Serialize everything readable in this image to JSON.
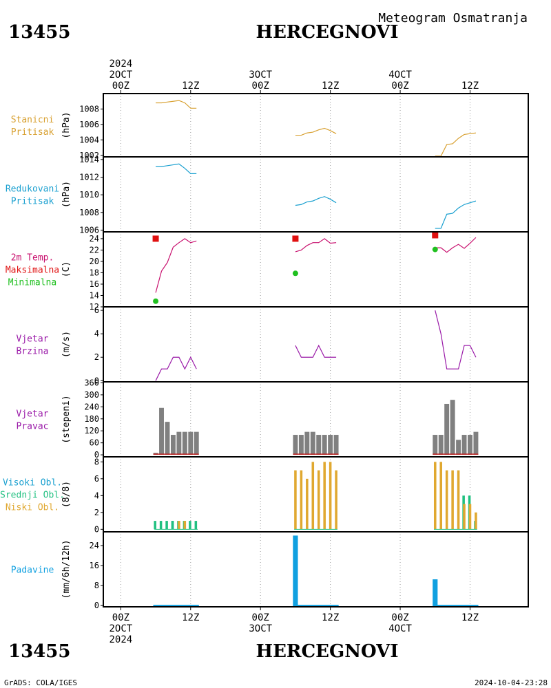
{
  "header": {
    "station_id": "13455",
    "station_name": "HERCEGNOVI",
    "product_title": "Meteogram Osmatranja"
  },
  "footer": {
    "station_id": "13455",
    "station_name": "HERCEGNOVI",
    "credit": "GrADS: COLA/IGES",
    "timestamp": "2024-10-04-23:28"
  },
  "time_axis": {
    "top_lines": [
      {
        "x": 0,
        "lines": [
          "2024",
          "2OCT",
          "00Z"
        ]
      },
      {
        "x": 12,
        "lines": [
          "12Z"
        ]
      },
      {
        "x": 24,
        "lines": [
          "3OCT",
          "00Z"
        ]
      },
      {
        "x": 36,
        "lines": [
          "12Z"
        ]
      },
      {
        "x": 48,
        "lines": [
          "4OCT",
          "00Z"
        ]
      },
      {
        "x": 60,
        "lines": [
          "12Z"
        ]
      }
    ],
    "bottom_lines": [
      {
        "x": 0,
        "lines": [
          "00Z",
          "2OCT",
          "2024"
        ]
      },
      {
        "x": 12,
        "lines": [
          "12Z"
        ]
      },
      {
        "x": 24,
        "lines": [
          "00Z",
          "3OCT"
        ]
      },
      {
        "x": 36,
        "lines": [
          "12Z"
        ]
      },
      {
        "x": 48,
        "lines": [
          "00Z",
          "4OCT"
        ]
      },
      {
        "x": 60,
        "lines": [
          "12Z"
        ]
      }
    ],
    "x_range_hours": [
      -3,
      70
    ],
    "gridlines_hours": [
      0,
      12,
      24,
      36,
      48,
      60
    ]
  },
  "colors": {
    "station_pressure": "#d8a030",
    "reduced_pressure": "#1aa0d0",
    "temp_label": "#c8106e",
    "max_label": "#e01010",
    "min_label": "#20c020",
    "wind": "#9a1aa8",
    "wind_dir_bar": "#808080",
    "wind_dir_base": "#c02020",
    "cloud_high": "#1aa0d0",
    "cloud_mid": "#20c080",
    "cloud_low": "#e0a830",
    "precip": "#10a0e0",
    "grid": "#999999"
  },
  "chart_data": [
    {
      "type": "line",
      "id": "station_pressure",
      "labels": [
        "Stanicni",
        "Pritisak"
      ],
      "ylabel": "(hPa)",
      "ylim": [
        1001.8,
        1010
      ],
      "yticks": [
        1002,
        1004,
        1006,
        1008
      ],
      "series": [
        {
          "values": [
            [
              6,
              1008.8
            ],
            [
              7,
              1008.8
            ],
            [
              8,
              1008.9
            ],
            [
              9,
              1009.0
            ],
            [
              10,
              1009.1
            ],
            [
              11,
              1008.8
            ],
            [
              12,
              1008.1
            ],
            [
              13,
              1008.1
            ]
          ]
        },
        {
          "values": [
            [
              30,
              1004.6
            ],
            [
              31,
              1004.6
            ],
            [
              32,
              1004.9
            ],
            [
              33,
              1005.0
            ],
            [
              34,
              1005.3
            ],
            [
              35,
              1005.5
            ],
            [
              36,
              1005.2
            ],
            [
              37,
              1004.8
            ]
          ]
        },
        {
          "values": [
            [
              54,
              1001.9
            ],
            [
              55,
              1001.9
            ],
            [
              56,
              1003.4
            ],
            [
              57,
              1003.5
            ],
            [
              58,
              1004.2
            ],
            [
              59,
              1004.7
            ],
            [
              60,
              1004.8
            ],
            [
              61,
              1004.9
            ]
          ]
        }
      ]
    },
    {
      "type": "line",
      "id": "reduced_pressure",
      "labels": [
        "Redukovani",
        "Pritisak"
      ],
      "ylabel": "(hPa)",
      "ylim": [
        1005.8,
        1014.3
      ],
      "yticks": [
        1006,
        1008,
        1010,
        1012,
        1014
      ],
      "series": [
        {
          "values": [
            [
              6,
              1013.2
            ],
            [
              7,
              1013.2
            ],
            [
              8,
              1013.3
            ],
            [
              9,
              1013.4
            ],
            [
              10,
              1013.5
            ],
            [
              11,
              1013.0
            ],
            [
              12,
              1012.4
            ],
            [
              13,
              1012.4
            ]
          ]
        },
        {
          "values": [
            [
              30,
              1008.8
            ],
            [
              31,
              1008.9
            ],
            [
              32,
              1009.2
            ],
            [
              33,
              1009.3
            ],
            [
              34,
              1009.6
            ],
            [
              35,
              1009.8
            ],
            [
              36,
              1009.5
            ],
            [
              37,
              1009.1
            ]
          ]
        },
        {
          "values": [
            [
              54,
              1006.2
            ],
            [
              55,
              1006.2
            ],
            [
              56,
              1007.8
            ],
            [
              57,
              1007.9
            ],
            [
              58,
              1008.5
            ],
            [
              59,
              1008.9
            ],
            [
              60,
              1009.1
            ],
            [
              61,
              1009.3
            ]
          ]
        }
      ]
    },
    {
      "type": "line",
      "id": "temperature",
      "labels": [
        "2m Temp.",
        "Maksimalna",
        "Minimalna"
      ],
      "ylabel": "(C)",
      "ylim": [
        12,
        25.2
      ],
      "yticks": [
        12,
        14,
        16,
        18,
        20,
        22,
        24
      ],
      "series": [
        {
          "name": "2m Temp.",
          "values": [
            [
              6,
              14.5
            ],
            [
              7,
              18.3
            ],
            [
              8,
              19.8
            ],
            [
              9,
              22.5
            ],
            [
              10,
              23.3
            ],
            [
              11,
              24.0
            ],
            [
              12,
              23.3
            ],
            [
              13,
              23.6
            ]
          ]
        },
        {
          "name": "2m Temp.",
          "values": [
            [
              30,
              21.7
            ],
            [
              31,
              22.0
            ],
            [
              32,
              22.8
            ],
            [
              33,
              23.3
            ],
            [
              34,
              23.3
            ],
            [
              35,
              24.0
            ],
            [
              36,
              23.2
            ],
            [
              37,
              23.3
            ]
          ]
        },
        {
          "name": "2m Temp.",
          "values": [
            [
              54,
              22.4
            ],
            [
              55,
              22.4
            ],
            [
              56,
              21.6
            ],
            [
              57,
              22.4
            ],
            [
              58,
              23.0
            ],
            [
              59,
              22.3
            ],
            [
              60,
              23.2
            ],
            [
              61,
              24.2
            ]
          ]
        }
      ],
      "max_points": [
        [
          6,
          24.0
        ],
        [
          30,
          24.0
        ],
        [
          54,
          24.6
        ]
      ],
      "min_points": [
        [
          6,
          13.0
        ],
        [
          30,
          17.9
        ],
        [
          54,
          22.1
        ]
      ]
    },
    {
      "type": "line",
      "id": "wind_speed",
      "labels": [
        "Vjetar",
        "Brzina"
      ],
      "ylabel": "(m/s)",
      "ylim": [
        -0.1,
        6.3
      ],
      "yticks": [
        0,
        2,
        4,
        6
      ],
      "series": [
        {
          "values": [
            [
              6,
              0
            ],
            [
              7,
              1
            ],
            [
              8,
              1
            ],
            [
              9,
              2
            ],
            [
              10,
              2
            ],
            [
              11,
              1
            ],
            [
              12,
              2
            ],
            [
              13,
              1
            ]
          ]
        },
        {
          "values": [
            [
              30,
              3
            ],
            [
              31,
              2
            ],
            [
              32,
              2
            ],
            [
              33,
              2
            ],
            [
              34,
              3
            ],
            [
              35,
              2
            ],
            [
              36,
              2
            ],
            [
              37,
              2
            ]
          ]
        },
        {
          "values": [
            [
              54,
              6
            ],
            [
              55,
              4
            ],
            [
              56,
              1
            ],
            [
              57,
              1
            ],
            [
              58,
              1
            ],
            [
              59,
              3
            ],
            [
              60,
              3
            ],
            [
              61,
              2
            ]
          ]
        }
      ]
    },
    {
      "type": "bar",
      "id": "wind_direction",
      "labels": [
        "Vjetar",
        "Pravac"
      ],
      "ylabel": "(stepeni)",
      "ylim": [
        -10,
        365
      ],
      "yticks": [
        0,
        60,
        120,
        180,
        240,
        300,
        360
      ],
      "bars": [
        [
          6,
          10
        ],
        [
          7,
          235
        ],
        [
          8,
          165
        ],
        [
          9,
          100
        ],
        [
          10,
          115
        ],
        [
          11,
          115
        ],
        [
          12,
          115
        ],
        [
          13,
          115
        ],
        [
          30,
          100
        ],
        [
          31,
          100
        ],
        [
          32,
          115
        ],
        [
          33,
          115
        ],
        [
          34,
          100
        ],
        [
          35,
          100
        ],
        [
          36,
          100
        ],
        [
          37,
          100
        ],
        [
          54,
          100
        ],
        [
          55,
          100
        ],
        [
          56,
          255
        ],
        [
          57,
          275
        ],
        [
          58,
          75
        ],
        [
          59,
          100
        ],
        [
          60,
          100
        ],
        [
          61,
          115
        ]
      ]
    },
    {
      "type": "bar",
      "id": "clouds",
      "labels": [
        "Visoki Obl.",
        "Srednji Obl.",
        "Niski Obl."
      ],
      "ylabel": "(8/8)",
      "ylim": [
        -0.3,
        8.6
      ],
      "yticks": [
        0,
        2,
        4,
        6,
        8
      ],
      "series": [
        {
          "name": "Visoki Obl.",
          "values": [
            [
              6,
              0
            ],
            [
              7,
              0
            ],
            [
              8,
              0
            ],
            [
              9,
              1
            ],
            [
              10,
              0
            ],
            [
              11,
              0
            ],
            [
              12,
              0
            ],
            [
              13,
              0
            ],
            [
              30,
              0
            ],
            [
              31,
              0
            ],
            [
              32,
              0
            ],
            [
              33,
              0
            ],
            [
              34,
              0
            ],
            [
              35,
              0
            ],
            [
              36,
              0
            ],
            [
              37,
              0
            ],
            [
              54,
              0
            ],
            [
              55,
              0
            ],
            [
              56,
              0
            ],
            [
              57,
              0
            ],
            [
              58,
              0
            ],
            [
              59,
              0
            ],
            [
              60,
              0
            ],
            [
              61,
              0
            ]
          ]
        },
        {
          "name": "Srednji Obl.",
          "values": [
            [
              6,
              1
            ],
            [
              7,
              1
            ],
            [
              8,
              1
            ],
            [
              9,
              1
            ],
            [
              10,
              1
            ],
            [
              11,
              1
            ],
            [
              12,
              1
            ],
            [
              13,
              1
            ],
            [
              30,
              0
            ],
            [
              31,
              0
            ],
            [
              32,
              0
            ],
            [
              33,
              0
            ],
            [
              34,
              0
            ],
            [
              35,
              0
            ],
            [
              36,
              0
            ],
            [
              37,
              0
            ],
            [
              54,
              0
            ],
            [
              55,
              0
            ],
            [
              56,
              0
            ],
            [
              57,
              0
            ],
            [
              58,
              0
            ],
            [
              59,
              4
            ],
            [
              60,
              4
            ],
            [
              61,
              1
            ]
          ]
        },
        {
          "name": "Niski Obl.",
          "values": [
            [
              6,
              0
            ],
            [
              7,
              0
            ],
            [
              8,
              0
            ],
            [
              9,
              0
            ],
            [
              10,
              1
            ],
            [
              11,
              1
            ],
            [
              12,
              0
            ],
            [
              13,
              0
            ],
            [
              30,
              7
            ],
            [
              31,
              7
            ],
            [
              32,
              6
            ],
            [
              33,
              8
            ],
            [
              34,
              7
            ],
            [
              35,
              8
            ],
            [
              36,
              8
            ],
            [
              37,
              7
            ],
            [
              54,
              8
            ],
            [
              55,
              8
            ],
            [
              56,
              7
            ],
            [
              57,
              7
            ],
            [
              58,
              7
            ],
            [
              59,
              3
            ],
            [
              60,
              3
            ],
            [
              61,
              2
            ]
          ]
        }
      ]
    },
    {
      "type": "bar",
      "id": "precipitation",
      "labels": [
        "Padavine"
      ],
      "ylabel": "(mm/6h/12h)",
      "ylim": [
        -0.5,
        29.5
      ],
      "yticks": [
        0,
        8,
        16,
        24
      ],
      "bars": [
        [
          30,
          28
        ],
        [
          54,
          10.5
        ]
      ],
      "trace_segments": [
        [
          6,
          13
        ],
        [
          30,
          37
        ],
        [
          54,
          61
        ]
      ]
    }
  ]
}
